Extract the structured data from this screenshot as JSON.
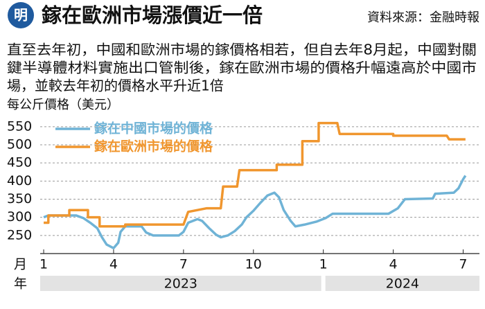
{
  "chart_data": {
    "type": "line",
    "title": "鎵在歐洲市場漲價近一倍",
    "source": "資料來源：金融時報",
    "logo": "明",
    "note": [
      "直至去年初，中國和歐洲市場的鎵價格相若，但自去年8月起，中國對關",
      "鍵半導體材料實施出口管制後，鎵在歐洲市場的價格升幅遠高於中國市",
      "場，並較去年初的價格水平升近1倍"
    ],
    "ylabel": "每公斤價格（美元）",
    "xlabel": "月",
    "year_label": "年",
    "ylim": [
      200,
      565
    ],
    "yticks": [
      250,
      300,
      350,
      400,
      450,
      500,
      550
    ],
    "xlim": [
      -0.15,
      18.7
    ],
    "xticks": [
      {
        "value": 0,
        "label": "1"
      },
      {
        "value": 3,
        "label": "4"
      },
      {
        "value": 6,
        "label": "7"
      },
      {
        "value": 9,
        "label": "10"
      },
      {
        "value": 12,
        "label": "1"
      },
      {
        "value": 15,
        "label": "4"
      },
      {
        "value": 18,
        "label": "7"
      }
    ],
    "years": [
      {
        "value": 0,
        "label": "2023"
      },
      {
        "value": 12,
        "label": "2024"
      }
    ],
    "grid": true,
    "legend": "upper left",
    "series": [
      {
        "name": "鎵在中國市場的價格",
        "color": "#6fb3d6",
        "x": [
          0,
          0.2,
          1.4,
          1.7,
          2.0,
          2.3,
          2.5,
          2.7,
          3.0,
          3.2,
          3.3,
          3.5,
          4.2,
          4.4,
          4.7,
          5.8,
          6.0,
          6.2,
          6.6,
          6.8,
          7.1,
          7.4,
          7.6,
          7.9,
          8.2,
          8.5,
          8.7,
          9.0,
          9.3,
          9.6,
          9.9,
          10.1,
          10.3,
          10.6,
          10.8,
          11.2,
          11.7,
          12.1,
          12.4,
          14.8,
          15.2,
          15.5,
          16.7,
          16.8,
          17.6,
          17.8,
          18.0,
          18.1
        ],
        "values": [
          300,
          305,
          305,
          298,
          285,
          270,
          245,
          225,
          215,
          230,
          260,
          275,
          275,
          258,
          250,
          250,
          260,
          285,
          295,
          290,
          270,
          252,
          245,
          250,
          262,
          280,
          300,
          318,
          340,
          360,
          368,
          355,
          320,
          290,
          275,
          280,
          288,
          298,
          310,
          310,
          325,
          350,
          352,
          365,
          368,
          380,
          405,
          415
        ]
      },
      {
        "name": "鎵在歐洲市場的價格",
        "color": "#f0962e",
        "x": [
          0,
          0.2,
          0.2,
          1.1,
          1.1,
          1.9,
          1.9,
          2.4,
          2.4,
          3.5,
          3.5,
          6.0,
          6.2,
          6.6,
          7.0,
          7.6,
          7.7,
          8.3,
          8.4,
          10.0,
          10.0,
          11.1,
          11.1,
          11.8,
          11.8,
          12.6,
          12.7,
          15.0,
          15.0,
          17.3,
          17.4,
          18.1
        ],
        "values": [
          285,
          285,
          305,
          305,
          320,
          320,
          300,
          300,
          275,
          275,
          280,
          280,
          315,
          320,
          325,
          325,
          385,
          385,
          430,
          430,
          445,
          445,
          510,
          510,
          560,
          560,
          530,
          530,
          525,
          525,
          515,
          515
        ]
      }
    ]
  }
}
